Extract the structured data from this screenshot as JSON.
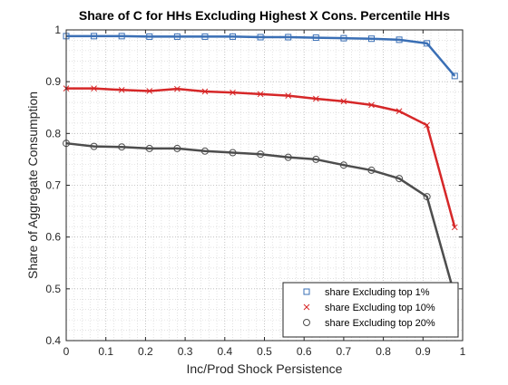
{
  "chart_data": {
    "type": "line",
    "title": "Share of C for HHs Excluding Highest X Cons. Percentile HHs",
    "xlabel": "Inc/Prod Shock Persistence",
    "ylabel": "Share of Aggregate Consumption",
    "xlim": [
      0,
      1
    ],
    "ylim": [
      0.4,
      1
    ],
    "xticks": [
      "0",
      "0.1",
      "0.2",
      "0.3",
      "0.4",
      "0.5",
      "0.6",
      "0.7",
      "0.8",
      "0.9",
      "1"
    ],
    "yticks": [
      "0.4",
      "0.5",
      "0.6",
      "0.7",
      "0.8",
      "0.9",
      "1"
    ],
    "grid": "on (major and minor dotted)",
    "legend_position": "bottom-right",
    "x": [
      0,
      0.07,
      0.14,
      0.21,
      0.28,
      0.35,
      0.42,
      0.49,
      0.56,
      0.63,
      0.7,
      0.77,
      0.84,
      0.91,
      0.98
    ],
    "series": [
      {
        "name": "share Excluding top 1%",
        "color": "#3a6fb5",
        "marker": "square",
        "values": [
          0.988,
          0.988,
          0.988,
          0.987,
          0.987,
          0.987,
          0.987,
          0.986,
          0.986,
          0.985,
          0.984,
          0.983,
          0.981,
          0.974,
          0.911
        ]
      },
      {
        "name": "share Excluding top 10%",
        "color": "#d62728",
        "marker": "x",
        "values": [
          0.887,
          0.887,
          0.884,
          0.882,
          0.886,
          0.881,
          0.879,
          0.876,
          0.873,
          0.867,
          0.862,
          0.855,
          0.843,
          0.816,
          0.619
        ]
      },
      {
        "name": "share Excluding top 20%",
        "color": "#4d4d4d",
        "marker": "circle",
        "values": [
          0.781,
          0.775,
          0.774,
          0.771,
          0.771,
          0.766,
          0.763,
          0.76,
          0.754,
          0.75,
          0.739,
          0.729,
          0.713,
          0.678,
          0.487
        ]
      }
    ]
  }
}
